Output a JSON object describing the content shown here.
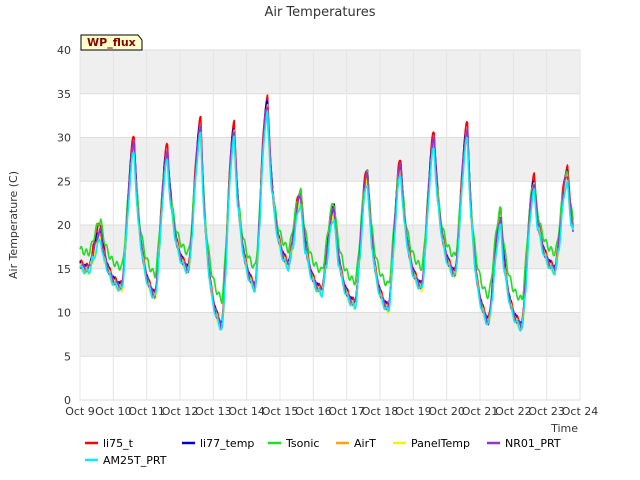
{
  "chart_data": {
    "type": "line",
    "title": "Air Temperatures",
    "xlabel": "Time",
    "ylabel": "Air Temperature (C)",
    "ylim": [
      0,
      40
    ],
    "xlim": [
      "Oct 9",
      "Oct 24"
    ],
    "yticks": [
      0,
      5,
      10,
      15,
      20,
      25,
      30,
      35,
      40
    ],
    "xtick_labels": [
      "Oct 9",
      "Oct 10",
      "Oct 11",
      "Oct 12",
      "Oct 13",
      "Oct 14",
      "Oct 15",
      "Oct 16",
      "Oct 17",
      "Oct 18",
      "Oct 19",
      "Oct 20",
      "Oct 21",
      "Oct 22",
      "Oct 23",
      "Oct 24"
    ],
    "grid": true,
    "legend_position": "bottom",
    "annotation": "WP_flux",
    "day_labels": [
      "Oct 9",
      "Oct 10",
      "Oct 11",
      "Oct 12",
      "Oct 13",
      "Oct 14",
      "Oct 15",
      "Oct 16",
      "Oct 17",
      "Oct 18",
      "Oct 19",
      "Oct 20",
      "Oct 21",
      "Oct 22",
      "Oct 23"
    ],
    "base_series": {
      "day_max": [
        19.5,
        29.5,
        28.5,
        31.5,
        31.0,
        34.0,
        23.5,
        22.0,
        26.0,
        27.0,
        30.0,
        31.0,
        21.0,
        25.0,
        26.0
      ],
      "night_min": [
        15.0,
        13.0,
        12.0,
        15.0,
        8.5,
        13.0,
        15.5,
        12.5,
        11.0,
        10.5,
        13.0,
        14.5,
        9.0,
        8.5,
        15.0
      ]
    },
    "series": [
      {
        "name": "li75_t",
        "color": "#ff0000",
        "offset": 0.6
      },
      {
        "name": "li77_temp",
        "color": "#0000cc",
        "offset": 0.0
      },
      {
        "name": "Tsonic",
        "color": "#22dd22",
        "offset": 3.0
      },
      {
        "name": "AirT",
        "color": "#ffa500",
        "offset": -0.5
      },
      {
        "name": "PanelTemp",
        "color": "#ffee00",
        "offset": -0.9
      },
      {
        "name": "NR01_PRT",
        "color": "#9932cc",
        "offset": -0.2
      },
      {
        "name": "AM25T_PRT",
        "color": "#00eeff",
        "offset": -1.2
      }
    ]
  },
  "legend": {
    "items": [
      "li75_t",
      "li77_temp",
      "Tsonic",
      "AirT",
      "PanelTemp",
      "NR01_PRT",
      "AM25T_PRT"
    ]
  }
}
